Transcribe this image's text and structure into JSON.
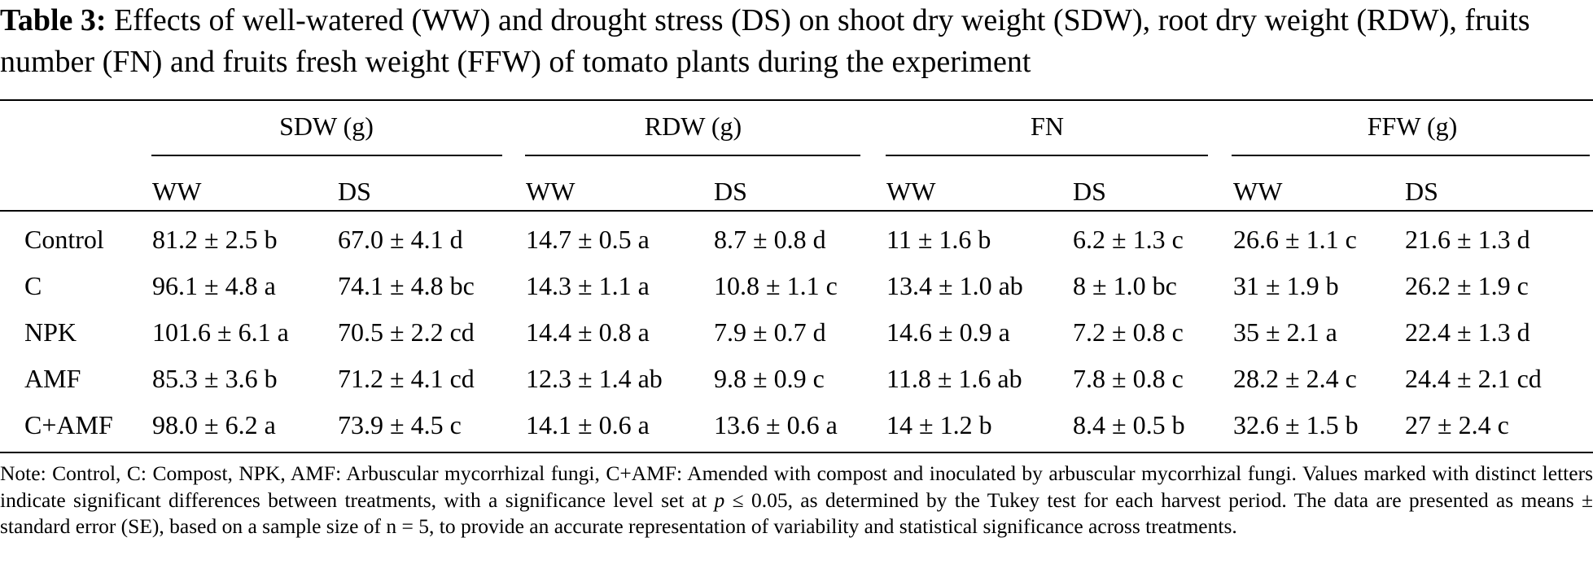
{
  "table": {
    "caption_label": "Table 3:",
    "caption_text": "Effects of well-watered (WW) and drought stress (DS) on shoot dry weight (SDW), root dry weight (RDW), fruits number (FN) and fruits fresh weight (FFW) of tomato plants during the experiment",
    "groups": [
      "SDW (g)",
      "RDW (g)",
      "FN",
      "FFW (g)"
    ],
    "subheaders": [
      "WW",
      "DS",
      "WW",
      "DS",
      "WW",
      "DS",
      "WW",
      "DS"
    ],
    "rows": [
      {
        "label": "Control",
        "cells": [
          "81.2 ± 2.5 b",
          "67.0 ± 4.1 d",
          "14.7 ± 0.5 a",
          "8.7 ± 0.8 d",
          "11 ± 1.6 b",
          "6.2 ± 1.3 c",
          "26.6 ± 1.1 c",
          "21.6 ± 1.3 d"
        ]
      },
      {
        "label": "C",
        "cells": [
          "96.1 ± 4.8 a",
          "74.1 ± 4.8 bc",
          "14.3 ± 1.1 a",
          "10.8 ± 1.1 c",
          "13.4 ± 1.0 ab",
          "8 ± 1.0 bc",
          "31 ± 1.9 b",
          "26.2 ± 1.9 c"
        ]
      },
      {
        "label": "NPK",
        "cells": [
          "101.6 ± 6.1 a",
          "70.5 ± 2.2 cd",
          "14.4 ± 0.8 a",
          "7.9 ± 0.7 d",
          "14.6 ± 0.9 a",
          "7.2 ± 0.8 c",
          "35 ± 2.1 a",
          "22.4 ± 1.3 d"
        ]
      },
      {
        "label": "AMF",
        "cells": [
          "85.3 ± 3.6 b",
          "71.2 ± 4.1 cd",
          "12.3 ± 1.4 ab",
          "9.8 ± 0.9 c",
          "11.8 ± 1.6 ab",
          "7.8 ± 0.8 c",
          "28.2 ± 2.4 c",
          "24.4 ± 2.1 cd"
        ]
      },
      {
        "label": "C+AMF",
        "cells": [
          "98.0 ± 6.2 a",
          "73.9 ± 4.5 c",
          "14.1 ± 0.6 a",
          "13.6 ± 0.6 a",
          "14 ± 1.2 b",
          "8.4 ± 0.5 b",
          "32.6 ± 1.5 b",
          "27 ± 2.4 c"
        ]
      }
    ],
    "note": {
      "before_p": "Note: Control, C: Compost, NPK, AMF: Arbuscular mycorrhizal fungi, C+AMF: Amended with compost and inoculated by arbuscular mycorrhizal fungi. Values marked with distinct letters indicate significant differences between treatments, with a significance level set at ",
      "p_symbol": "p",
      "after_p": " ≤ 0.05, as determined by the Tukey test for each harvest period. The data are presented as means ± standard error (SE), based on a sample size of n = 5, to provide an accurate representation of variability and statistical significance across treatments."
    }
  }
}
